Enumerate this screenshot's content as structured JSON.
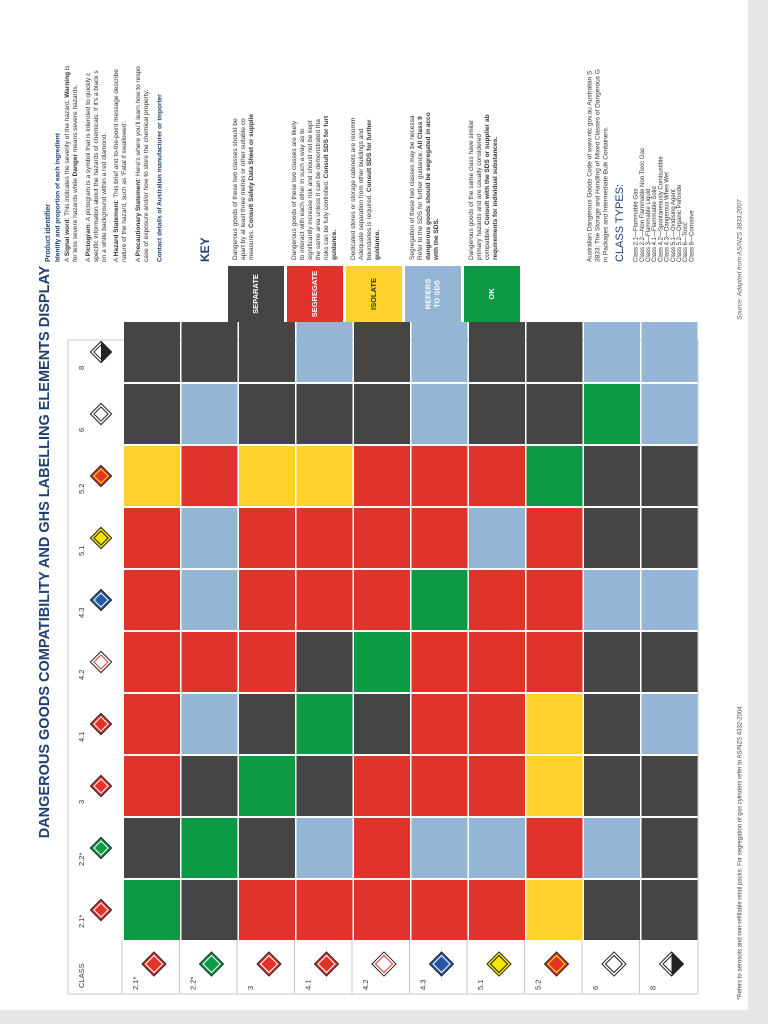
{
  "title": "DANGEROUS GOODS COMPATIBILITY AND GHS LABELLING ELEMENTS DISPLAY",
  "table": {
    "corner": "CLASS",
    "classes": [
      "2.1*",
      "2.2*",
      "3",
      "4.1",
      "4.2",
      "4.3",
      "5.1",
      "5.2",
      "6",
      "8"
    ],
    "rows": [
      [
        "#0d9a44",
        "#454545",
        "#e0332b",
        "#e0332b",
        "#e0332b",
        "#e0332b",
        "#e0332b",
        "#fcd22b",
        "#454545",
        "#454545"
      ],
      [
        "#454545",
        "#0d9a44",
        "#454545",
        "#93b6d4",
        "#e0332b",
        "#93b6d4",
        "#93b6d4",
        "#e0332b",
        "#93b6d4",
        "#454545"
      ],
      [
        "#e0332b",
        "#454545",
        "#0d9a44",
        "#454545",
        "#e0332b",
        "#e0332b",
        "#e0332b",
        "#fcd22b",
        "#454545",
        "#454545"
      ],
      [
        "#e0332b",
        "#93b6d4",
        "#454545",
        "#0d9a44",
        "#454545",
        "#e0332b",
        "#e0332b",
        "#fcd22b",
        "#454545",
        "#93b6d4"
      ],
      [
        "#e0332b",
        "#e0332b",
        "#e0332b",
        "#454545",
        "#0d9a44",
        "#e0332b",
        "#e0332b",
        "#e0332b",
        "#454545",
        "#454545"
      ],
      [
        "#e0332b",
        "#93b6d4",
        "#e0332b",
        "#e0332b",
        "#e0332b",
        "#0d9a44",
        "#e0332b",
        "#e0332b",
        "#93b6d4",
        "#93b6d4"
      ],
      [
        "#e0332b",
        "#93b6d4",
        "#e0332b",
        "#e0332b",
        "#e0332b",
        "#e0332b",
        "#93b6d4",
        "#e0332b",
        "#454545",
        "#454545"
      ],
      [
        "#fcd22b",
        "#e0332b",
        "#fcd22b",
        "#fcd22b",
        "#e0332b",
        "#e0332b",
        "#e0332b",
        "#0d9a44",
        "#454545",
        "#454545"
      ],
      [
        "#454545",
        "#93b6d4",
        "#454545",
        "#454545",
        "#454545",
        "#93b6d4",
        "#454545",
        "#454545",
        "#0d9a44",
        "#93b6d4"
      ],
      [
        "#454545",
        "#454545",
        "#454545",
        "#93b6d4",
        "#454545",
        "#93b6d4",
        "#454545",
        "#454545",
        "#93b6d4",
        "#93b6d4"
      ]
    ]
  },
  "info": {
    "heading": "Product identifier",
    "subheading": "Identify and proportion of each ingredient",
    "paragraphs": [
      [
        [
          {
            "text": "A "
          },
          {
            "text": "Signal word",
            "bold": true
          },
          {
            "text": ": This indicates the severity of the hazard. "
          },
          {
            "text": "Warning",
            "bold": true
          },
          {
            "text": " is"
          }
        ],
        [
          {
            "text": "for less severe hazards while "
          },
          {
            "text": "Danger",
            "bold": true
          },
          {
            "text": " means severe hazards."
          }
        ]
      ],
      [
        [
          {
            "text": "A "
          },
          {
            "text": "Pictogram",
            "bold": true
          },
          {
            "text": ": A pictogram is a symbol that is intended to quickly c"
          }
        ],
        [
          {
            "text": "specific information about the hazards of chemicals. If it's a black s"
          }
        ],
        [
          {
            "text": "on a white background within a red diamond."
          }
        ]
      ],
      [
        [
          {
            "text": "A "
          },
          {
            "text": "Hazard Statement",
            "bold": true
          },
          {
            "text": ": This brief and to-the-point message describe"
          }
        ],
        [
          {
            "text": "nature of the hazard, such as 'Fatal if swallowed'."
          }
        ]
      ],
      [
        [
          {
            "text": "A "
          },
          {
            "text": "Precautionary Statement",
            "bold": true
          },
          {
            "text": ": Here's where you'll learn how to respo"
          }
        ],
        [
          {
            "text": "case of exposure and/or how to store the chemical property."
          }
        ]
      ]
    ],
    "contact": "Contact details of Australian manufacturer or importer"
  },
  "key": {
    "title": "KEY",
    "entries": [
      {
        "label": [
          "SEPARATE"
        ],
        "color": "#454545",
        "text_color": "#ffffff",
        "lines": [
          [
            {
              "text": "Dangerous goods of these two classes should be"
            }
          ],
          [
            {
              "text": "apart by at least three metres or other suitable co"
            }
          ],
          [
            {
              "text": "measures. "
            },
            {
              "text": "Consult Safety Data Sheet or supplie",
              "bold": true
            }
          ]
        ]
      },
      {
        "label": [
          "SEGREGATE"
        ],
        "color": "#e0332b",
        "text_color": "#ffffff",
        "lines": [
          [
            {
              "text": "Dangerous goods of these two classes are likely"
            }
          ],
          [
            {
              "text": "to interact with each other in such a way as to"
            }
          ],
          [
            {
              "text": "significantly increase risk and should not be kept"
            }
          ],
          [
            {
              "text": "the same area unless it can be demonstrated tha"
            }
          ],
          [
            {
              "text": "risks can be fully controlled. "
            },
            {
              "text": "Consult SDS for furt",
              "bold": true
            }
          ],
          [
            {
              "text": "guidance.",
              "bold": true
            }
          ]
        ]
      },
      {
        "label": [
          "ISOLATE"
        ],
        "color": "#fcd22b",
        "text_color": "#333333",
        "lines": [
          [
            {
              "text": "Dedicated stores or storage cabinets are recomm"
            }
          ],
          [
            {
              "text": "Adequate separation from other buildings and"
            }
          ],
          [
            {
              "text": "boundaries is required. "
            },
            {
              "text": "Consult SDS for further",
              "bold": true
            }
          ],
          [
            {
              "text": "guidance.",
              "bold": true
            }
          ]
        ]
      },
      {
        "label": [
          "REFERS",
          "TO SDS"
        ],
        "color": "#93b6d4",
        "text_color": "#ffffff",
        "lines": [
          [
            {
              "text": "Segregation of these two classes may be necessa"
            }
          ],
          [
            {
              "text": "Refer to the SDS for further guidance. "
            },
            {
              "text": "All Class 9",
              "bold": true
            }
          ],
          [
            {
              "text": "dangerous goods should be segregated in acco",
              "bold": true
            }
          ],
          [
            {
              "text": "with the SDS.",
              "bold": true
            }
          ]
        ]
      },
      {
        "label": [
          "OK"
        ],
        "color": "#0d9a44",
        "text_color": "#ffffff",
        "lines": [
          [
            {
              "text": "Dangerous goods of the same class have similar"
            }
          ],
          [
            {
              "text": "primary hazards and are usually considered"
            }
          ],
          [
            {
              "text": "compatible. "
            },
            {
              "text": "Consult with the SDS or supplier ab",
              "bold": true
            }
          ],
          [
            {
              "text": "requirements for individual substances.",
              "bold": true
            }
          ]
        ]
      }
    ]
  },
  "reference": [
    "Australian Dangerous Goods Code of www.ntc.gov.au Australian S",
    "3833: The Storage and Handling of Mixed Classes of Dangerous G",
    "in Packages and Intermediate Bulk Containers."
  ],
  "class_types": {
    "title": "CLASS TYPES:",
    "items": [
      "Class 2.1—Flammable Gas",
      "Class 2.2—Non Flammable Non Toxic Gas",
      "Class 3—Flammable Liquid",
      "Class 4.1—Flammable Solid",
      "Class 4.2—Spontaneously Combustible",
      "Class 4.3—Dangerous When Wet",
      "Class 5.1—Oxidising Agent",
      "Class 5.2—Organic Peroxide",
      "Class 6—Toxic",
      "Class 8—Corrosive"
    ]
  },
  "source": "Source: Adapted from AS/NZS 3833:2007",
  "footnote": "*Refers to aerosols and non-refillable retail packs. For segregation of gas cylinders refer to AS/NZS 4332-2004"
}
